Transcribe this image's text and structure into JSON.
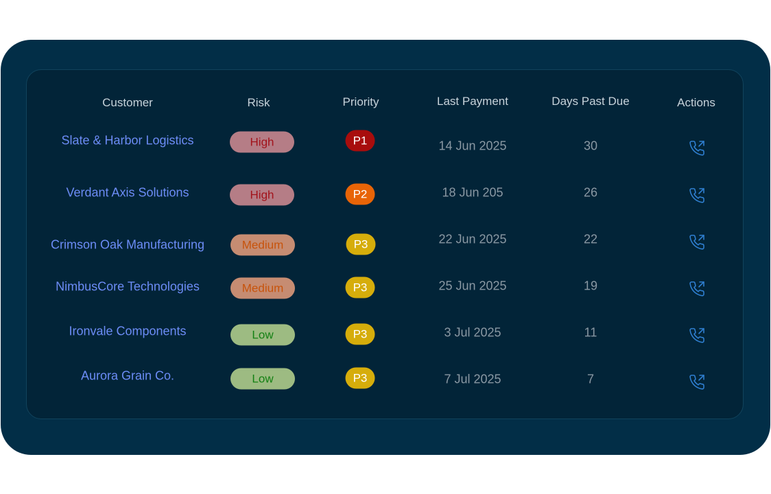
{
  "table": {
    "headers": {
      "customer": "Customer",
      "risk": "Risk",
      "priority": "Priority",
      "last_payment": "Last Payment",
      "days_past_due": "Days Past Due",
      "actions": "Actions"
    },
    "rows": [
      {
        "customer": "Slate & Harbor Logistics",
        "risk": "High",
        "priority": "P1",
        "last_payment": "14 Jun 2025",
        "days_past_due": "30",
        "action_icon": "phone-outgoing-icon"
      },
      {
        "customer": "Verdant Axis Solutions",
        "risk": "High",
        "priority": "P2",
        "last_payment": "18 Jun 205",
        "days_past_due": "26",
        "action_icon": "phone-outgoing-icon"
      },
      {
        "customer": "Crimson Oak Manufacturing",
        "risk": "Medium",
        "priority": "P3",
        "last_payment": "22 Jun 2025",
        "days_past_due": "22",
        "action_icon": "phone-outgoing-icon"
      },
      {
        "customer": "NimbusCore Technologies",
        "risk": "Medium",
        "priority": "P3",
        "last_payment": "25 Jun 2025",
        "days_past_due": "19",
        "action_icon": "phone-outgoing-icon"
      },
      {
        "customer": "Ironvale Components",
        "risk": "Low",
        "priority": "P3",
        "last_payment": "3 Jul 2025",
        "days_past_due": "11",
        "action_icon": "phone-outgoing-icon"
      },
      {
        "customer": "Aurora Grain Co.",
        "risk": "Low",
        "priority": "P3",
        "last_payment": "7 Jul 2025",
        "days_past_due": "7",
        "action_icon": "phone-outgoing-icon"
      }
    ]
  },
  "colors": {
    "outer_panel": "#022e47",
    "inner_panel": "#022438",
    "customer_link": "#6c8cf5",
    "action_icon": "#2f7fd0",
    "risk_high_bg": "#b57d86",
    "risk_high_text": "#a2121a",
    "risk_medium_bg": "#c68c72",
    "risk_medium_text": "#c7530b",
    "risk_low_bg": "#9dbb82",
    "risk_low_text": "#138013",
    "priority_p1": "#a80d0d",
    "priority_p2": "#e86407",
    "priority_p3": "#d6ad0b"
  }
}
